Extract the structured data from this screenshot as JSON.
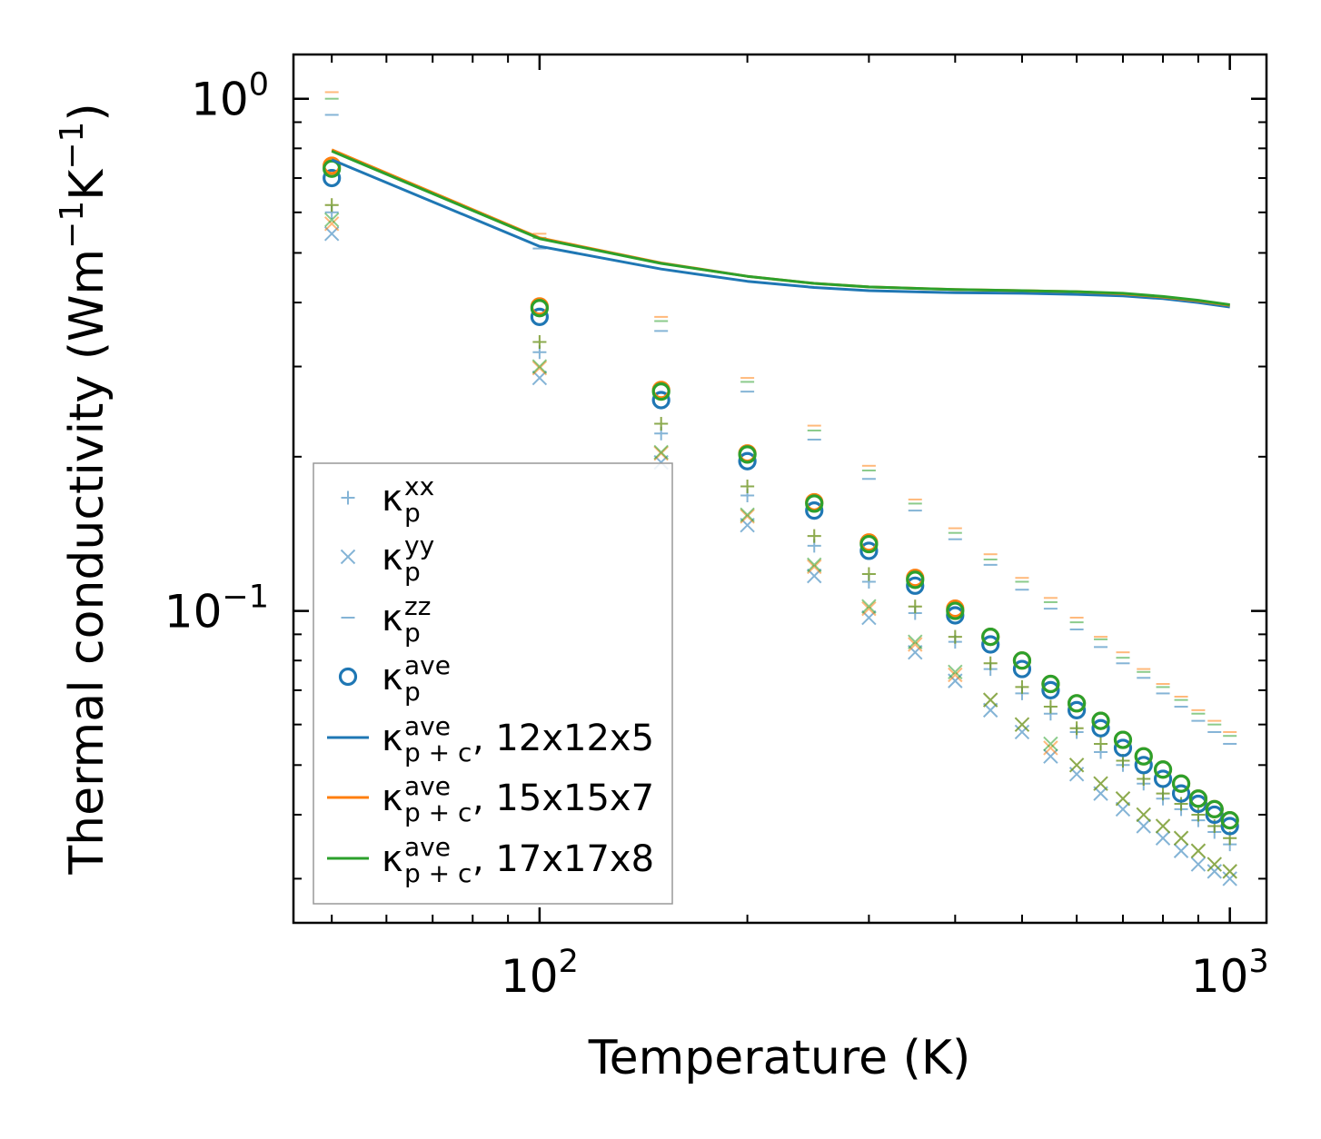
{
  "chart_data": {
    "type": "scatter",
    "x_scale": "log",
    "y_scale": "log",
    "xlabel": "Temperature (K)",
    "ylabel": {
      "text": "Thermal conductivity (Wm",
      "sup1": "−1",
      "mid": "K",
      "sup2": "−1",
      "end": ")"
    },
    "xlim": [
      44,
      1130
    ],
    "ylim": [
      0.0246,
      1.22
    ],
    "x_ticks": [
      {
        "value": 100,
        "base": "10",
        "exp": "2"
      },
      {
        "value": 1000,
        "base": "10",
        "exp": "3"
      }
    ],
    "y_ticks": [
      {
        "value": 0.1,
        "base": "10",
        "exp": "−1"
      },
      {
        "value": 1.0,
        "base": "10",
        "exp": "0"
      }
    ],
    "legend_position": "lower-left",
    "colors": {
      "blue": "#1f77b4",
      "orange": "#ff7f0e",
      "green": "#2ca02c"
    },
    "temperatures": [
      50,
      100,
      150,
      200,
      250,
      300,
      350,
      400,
      450,
      500,
      550,
      600,
      650,
      700,
      750,
      800,
      850,
      900,
      950,
      1000
    ],
    "marker_series": [
      {
        "component": "xx",
        "mesh": "12x12x5",
        "color": "#1f77b4",
        "marker": "plus",
        "values": [
          0.6,
          0.32,
          0.222,
          0.168,
          0.134,
          0.114,
          0.099,
          0.087,
          0.077,
          0.069,
          0.063,
          0.058,
          0.053,
          0.05,
          0.046,
          0.043,
          0.041,
          0.039,
          0.037,
          0.035
        ]
      },
      {
        "component": "xx",
        "mesh": "15x15x7",
        "color": "#ff7f0e",
        "marker": "plus",
        "values": [
          0.62,
          0.335,
          0.232,
          0.175,
          0.14,
          0.118,
          0.102,
          0.089,
          0.079,
          0.071,
          0.065,
          0.059,
          0.055,
          0.051,
          0.047,
          0.044,
          0.042,
          0.04,
          0.038,
          0.036
        ]
      },
      {
        "component": "xx",
        "mesh": "17x17x8",
        "color": "#2ca02c",
        "marker": "plus",
        "values": [
          0.62,
          0.335,
          0.232,
          0.175,
          0.14,
          0.118,
          0.102,
          0.089,
          0.079,
          0.071,
          0.065,
          0.059,
          0.055,
          0.051,
          0.047,
          0.044,
          0.042,
          0.04,
          0.038,
          0.036
        ]
      },
      {
        "component": "yy",
        "mesh": "12x12x5",
        "color": "#1f77b4",
        "marker": "x",
        "values": [
          0.545,
          0.285,
          0.195,
          0.147,
          0.117,
          0.097,
          0.083,
          0.073,
          0.064,
          0.058,
          0.052,
          0.048,
          0.044,
          0.041,
          0.038,
          0.036,
          0.034,
          0.032,
          0.031,
          0.03
        ]
      },
      {
        "component": "yy",
        "mesh": "15x15x7",
        "color": "#ff7f0e",
        "marker": "x",
        "values": [
          0.57,
          0.298,
          0.203,
          0.153,
          0.122,
          0.101,
          0.086,
          0.075,
          0.067,
          0.06,
          0.054,
          0.05,
          0.046,
          0.043,
          0.04,
          0.038,
          0.036,
          0.034,
          0.032,
          0.031
        ]
      },
      {
        "component": "yy",
        "mesh": "17x17x8",
        "color": "#2ca02c",
        "marker": "x",
        "values": [
          0.58,
          0.3,
          0.204,
          0.154,
          0.123,
          0.102,
          0.087,
          0.076,
          0.067,
          0.06,
          0.055,
          0.05,
          0.046,
          0.043,
          0.04,
          0.038,
          0.036,
          0.034,
          0.032,
          0.031
        ]
      },
      {
        "component": "zz",
        "mesh": "12x12x5",
        "color": "#1f77b4",
        "marker": "hline",
        "values": [
          0.93,
          0.51,
          0.352,
          0.268,
          0.216,
          0.181,
          0.157,
          0.138,
          0.123,
          0.11,
          0.101,
          0.092,
          0.085,
          0.079,
          0.074,
          0.069,
          0.065,
          0.061,
          0.058,
          0.055
        ]
      },
      {
        "component": "zz",
        "mesh": "15x15x7",
        "color": "#ff7f0e",
        "marker": "hline",
        "values": [
          1.03,
          0.545,
          0.375,
          0.285,
          0.23,
          0.192,
          0.165,
          0.145,
          0.129,
          0.116,
          0.106,
          0.097,
          0.089,
          0.083,
          0.077,
          0.072,
          0.068,
          0.064,
          0.061,
          0.058
        ]
      },
      {
        "component": "zz",
        "mesh": "17x17x8",
        "color": "#2ca02c",
        "marker": "hline",
        "values": [
          1.0,
          0.535,
          0.368,
          0.28,
          0.225,
          0.188,
          0.162,
          0.142,
          0.126,
          0.114,
          0.104,
          0.095,
          0.088,
          0.081,
          0.076,
          0.071,
          0.067,
          0.063,
          0.06,
          0.057
        ]
      },
      {
        "component": "ave",
        "mesh": "12x12x5",
        "color": "#1f77b4",
        "marker": "circle",
        "values": [
          0.7,
          0.375,
          0.258,
          0.196,
          0.157,
          0.131,
          0.112,
          0.098,
          0.086,
          0.077,
          0.07,
          0.064,
          0.059,
          0.054,
          0.05,
          0.047,
          0.044,
          0.042,
          0.04,
          0.038
        ]
      },
      {
        "component": "ave",
        "mesh": "15x15x7",
        "color": "#ff7f0e",
        "marker": "circle",
        "values": [
          0.74,
          0.393,
          0.27,
          0.203,
          0.163,
          0.136,
          0.116,
          0.101,
          0.089,
          0.08,
          0.072,
          0.066,
          0.061,
          0.056,
          0.052,
          0.049,
          0.046,
          0.043,
          0.041,
          0.039
        ]
      },
      {
        "component": "ave",
        "mesh": "17x17x8",
        "color": "#2ca02c",
        "marker": "circle",
        "values": [
          0.73,
          0.39,
          0.268,
          0.202,
          0.162,
          0.135,
          0.115,
          0.1,
          0.089,
          0.08,
          0.072,
          0.066,
          0.061,
          0.056,
          0.052,
          0.049,
          0.046,
          0.043,
          0.041,
          0.039
        ]
      }
    ],
    "line_series": [
      {
        "name": "κ ave p+c, 12x12x5",
        "mesh": "12x12x5",
        "color": "#1f77b4",
        "x": [
          50,
          100,
          150,
          200,
          250,
          300,
          400,
          500,
          600,
          700,
          800,
          900,
          1000
        ],
        "values": [
          0.76,
          0.515,
          0.465,
          0.44,
          0.428,
          0.422,
          0.418,
          0.417,
          0.415,
          0.412,
          0.407,
          0.4,
          0.392
        ]
      },
      {
        "name": "κ ave p+c, 15x15x7",
        "mesh": "15x15x7",
        "color": "#ff7f0e",
        "x": [
          50,
          100,
          150,
          200,
          250,
          300,
          400,
          500,
          600,
          700,
          800,
          900,
          1000
        ],
        "values": [
          0.795,
          0.535,
          0.478,
          0.45,
          0.436,
          0.429,
          0.424,
          0.422,
          0.42,
          0.416,
          0.41,
          0.403,
          0.395
        ]
      },
      {
        "name": "κ ave p+c, 17x17x8",
        "mesh": "17x17x8",
        "color": "#2ca02c",
        "x": [
          50,
          100,
          150,
          200,
          250,
          300,
          400,
          500,
          600,
          700,
          800,
          900,
          1000
        ],
        "values": [
          0.79,
          0.533,
          0.477,
          0.45,
          0.436,
          0.429,
          0.424,
          0.422,
          0.42,
          0.417,
          0.411,
          0.404,
          0.396
        ]
      }
    ],
    "legend": [
      {
        "marker": "plus",
        "color": "#1f77b4",
        "sub": "p",
        "sup": "xx"
      },
      {
        "marker": "x",
        "color": "#1f77b4",
        "sub": "p",
        "sup": "yy"
      },
      {
        "marker": "hline",
        "color": "#1f77b4",
        "sub": "p",
        "sup": "zz"
      },
      {
        "marker": "circle",
        "color": "#1f77b4",
        "sub": "p",
        "sup": "ave"
      },
      {
        "marker": "line",
        "color": "#1f77b4",
        "sub": "p + c",
        "sup": "ave",
        "suffix": ", 12x12x5"
      },
      {
        "marker": "line",
        "color": "#ff7f0e",
        "sub": "p + c",
        "sup": "ave",
        "suffix": ", 15x15x7"
      },
      {
        "marker": "line",
        "color": "#2ca02c",
        "sub": "p + c",
        "sup": "ave",
        "suffix": ", 17x17x8"
      }
    ],
    "kappa_symbol": "κ"
  }
}
